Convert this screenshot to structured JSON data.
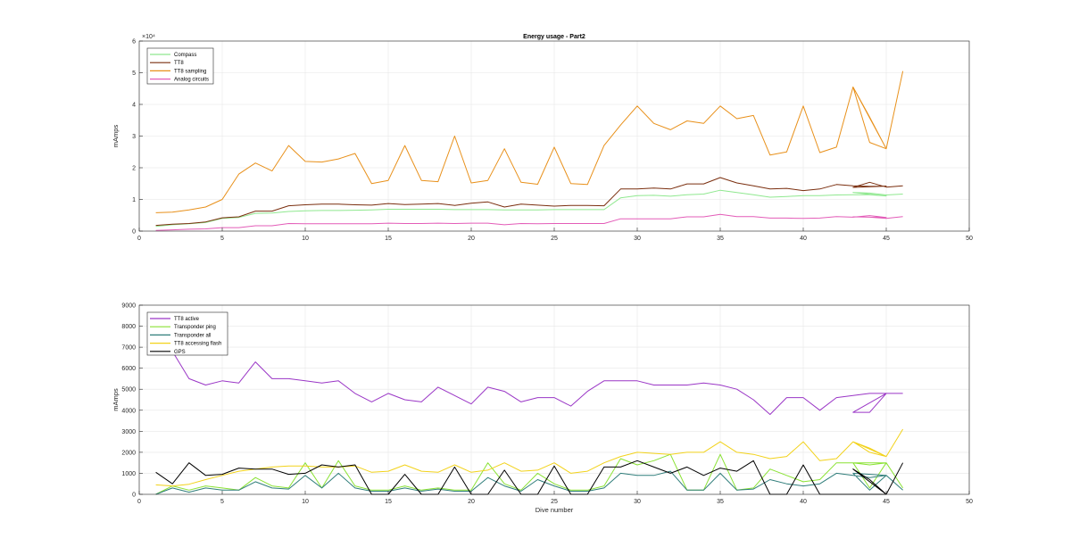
{
  "chart_data": [
    {
      "type": "line",
      "title": "Energy usage - Part2",
      "xlabel": "",
      "ylabel": "mAmps",
      "xlim": [
        0,
        50
      ],
      "ylim": [
        0,
        60000
      ],
      "x_ticks": [
        "0",
        "5",
        "10",
        "15",
        "20",
        "25",
        "30",
        "35",
        "40",
        "45",
        "50"
      ],
      "y_ticks": [
        "0",
        "1",
        "2",
        "3",
        "4",
        "5",
        "6"
      ],
      "y_exponent_label": "×10⁴",
      "grid": true,
      "legend_position": "top-left",
      "x": [
        1,
        2,
        3,
        4,
        5,
        6,
        7,
        8,
        9,
        10,
        11,
        12,
        13,
        14,
        15,
        16,
        17,
        18,
        19,
        20,
        21,
        22,
        23,
        24,
        25,
        26,
        27,
        28,
        29,
        30,
        31,
        32,
        33,
        34,
        35,
        36,
        37,
        38,
        39,
        40,
        41,
        42,
        43,
        44,
        45,
        43,
        44,
        45,
        46
      ],
      "series": [
        {
          "name": "Compass",
          "color": "#8fe88f",
          "values": [
            1500,
            2000,
            2300,
            2700,
            4000,
            4300,
            5600,
            5700,
            6200,
            6400,
            6500,
            6500,
            6600,
            6700,
            6900,
            6900,
            6900,
            6900,
            6800,
            6800,
            6800,
            6700,
            6700,
            6700,
            6800,
            6800,
            6800,
            6800,
            10500,
            11200,
            11300,
            11000,
            11500,
            11700,
            12900,
            12200,
            11500,
            10700,
            10900,
            11200,
            11200,
            11400,
            11500,
            11500,
            11100,
            12200,
            12000,
            11400,
            11700
          ]
        },
        {
          "name": "TT8",
          "color": "#7a2e0e",
          "values": [
            1800,
            2200,
            2400,
            2900,
            4200,
            4500,
            6300,
            6300,
            8000,
            8300,
            8500,
            8500,
            8300,
            8200,
            8700,
            8400,
            8500,
            8700,
            8100,
            8800,
            9200,
            7600,
            8500,
            8200,
            7900,
            8100,
            8100,
            8000,
            13300,
            13300,
            13600,
            13300,
            14900,
            14900,
            16900,
            15200,
            14300,
            13300,
            13500,
            12800,
            13300,
            14700,
            14300,
            14100,
            14200,
            13800,
            15400,
            13900,
            14300
          ]
        },
        {
          "name": "TT8 sampling",
          "color": "#e8901a",
          "values": [
            5800,
            6000,
            6700,
            7600,
            10000,
            18000,
            21500,
            19000,
            27000,
            22000,
            21800,
            22800,
            24500,
            15000,
            16000,
            27000,
            16000,
            15600,
            30000,
            15200,
            16000,
            26000,
            15400,
            14800,
            26500,
            15000,
            14700,
            27000,
            33500,
            39500,
            34000,
            32000,
            34800,
            34000,
            39500,
            35500,
            36500,
            24000,
            25000,
            39500,
            24800,
            26500,
            45500,
            28000,
            26000,
            45500,
            36000,
            26000,
            50500
          ]
        },
        {
          "name": "Analog circuits",
          "color": "#e35cb8",
          "values": [
            200,
            400,
            600,
            700,
            1100,
            1100,
            1700,
            1700,
            2400,
            2300,
            2300,
            2300,
            2300,
            2300,
            2500,
            2400,
            2400,
            2500,
            2400,
            2500,
            2500,
            2000,
            2400,
            2300,
            2400,
            2400,
            2400,
            2400,
            3900,
            3900,
            3900,
            3900,
            4500,
            4500,
            5300,
            4600,
            4600,
            4100,
            4100,
            4000,
            4100,
            4600,
            4400,
            4900,
            4300,
            4500,
            4400,
            4000,
            4600
          ]
        }
      ]
    },
    {
      "type": "line",
      "title": "",
      "xlabel": "Dive number",
      "ylabel": "mAmps",
      "xlim": [
        0,
        50
      ],
      "ylim": [
        0,
        9000
      ],
      "x_ticks": [
        "0",
        "5",
        "10",
        "15",
        "20",
        "25",
        "30",
        "35",
        "40",
        "45",
        "50"
      ],
      "y_ticks": [
        "0",
        "1000",
        "2000",
        "3000",
        "4000",
        "5000",
        "6000",
        "7000",
        "8000",
        "9000"
      ],
      "grid": true,
      "legend_position": "top-left",
      "x": [
        1,
        2,
        3,
        4,
        5,
        6,
        7,
        8,
        9,
        10,
        11,
        12,
        13,
        14,
        15,
        16,
        17,
        18,
        19,
        20,
        21,
        22,
        23,
        24,
        25,
        26,
        27,
        28,
        29,
        30,
        31,
        32,
        33,
        34,
        35,
        36,
        37,
        38,
        39,
        40,
        41,
        42,
        43,
        44,
        45,
        43,
        44,
        45,
        46
      ],
      "series": [
        {
          "name": "TT8 active",
          "color": "#9a36c6",
          "values": [
            7800,
            6800,
            5500,
            5200,
            5400,
            5300,
            6300,
            5500,
            5500,
            5400,
            5300,
            5400,
            4800,
            4400,
            4800,
            4500,
            4400,
            5100,
            4700,
            4300,
            5100,
            4900,
            4400,
            4600,
            4600,
            4200,
            4900,
            5400,
            5400,
            5400,
            5200,
            5200,
            5200,
            5300,
            5200,
            5000,
            4500,
            3800,
            4600,
            4600,
            4000,
            4600,
            4700,
            4800,
            4800,
            3900,
            3900,
            4800,
            4800
          ]
        },
        {
          "name": "Transponder ping",
          "color": "#8ae234",
          "values": [
            0,
            400,
            200,
            400,
            300,
            200,
            800,
            400,
            300,
            1500,
            300,
            1600,
            400,
            200,
            200,
            400,
            200,
            300,
            200,
            200,
            1500,
            500,
            200,
            1000,
            500,
            200,
            200,
            400,
            1700,
            1400,
            1600,
            1900,
            200,
            200,
            1900,
            200,
            300,
            1200,
            900,
            600,
            700,
            1500,
            1500,
            1400,
            1500,
            1500,
            300,
            1500,
            300
          ]
        },
        {
          "name": "Transponder all",
          "color": "#2f7d7a",
          "values": [
            0,
            300,
            100,
            300,
            200,
            200,
            600,
            300,
            250,
            900,
            300,
            1000,
            300,
            150,
            150,
            300,
            150,
            250,
            150,
            150,
            800,
            400,
            150,
            700,
            400,
            150,
            150,
            300,
            1000,
            900,
            900,
            1100,
            200,
            200,
            1000,
            200,
            250,
            700,
            500,
            400,
            500,
            1000,
            900,
            800,
            900,
            1000,
            200,
            900,
            200
          ]
        },
        {
          "name": "TT8 accessing flash",
          "color": "#f2d21a",
          "values": [
            450,
            400,
            480,
            700,
            900,
            1100,
            1200,
            1300,
            1350,
            1350,
            1300,
            1300,
            1350,
            1050,
            1100,
            1400,
            1100,
            1050,
            1400,
            1050,
            1150,
            1500,
            1100,
            1150,
            1500,
            1000,
            1100,
            1500,
            1800,
            2000,
            1950,
            1900,
            2000,
            2000,
            2500,
            2000,
            1900,
            1700,
            1800,
            2500,
            1600,
            1700,
            2500,
            2000,
            1800,
            2500,
            2200,
            1800,
            3100
          ]
        },
        {
          "name": "GPS",
          "color": "#000000",
          "values": [
            1050,
            500,
            1500,
            900,
            950,
            1250,
            1200,
            1200,
            950,
            1000,
            1400,
            1300,
            1400,
            0,
            0,
            950,
            0,
            0,
            1300,
            0,
            0,
            1150,
            0,
            0,
            1350,
            0,
            0,
            1300,
            1300,
            1600,
            1300,
            1000,
            1300,
            900,
            1250,
            1100,
            1600,
            0,
            0,
            1400,
            0,
            0,
            0,
            0,
            0,
            1200,
            700,
            0,
            1500
          ]
        }
      ]
    }
  ]
}
